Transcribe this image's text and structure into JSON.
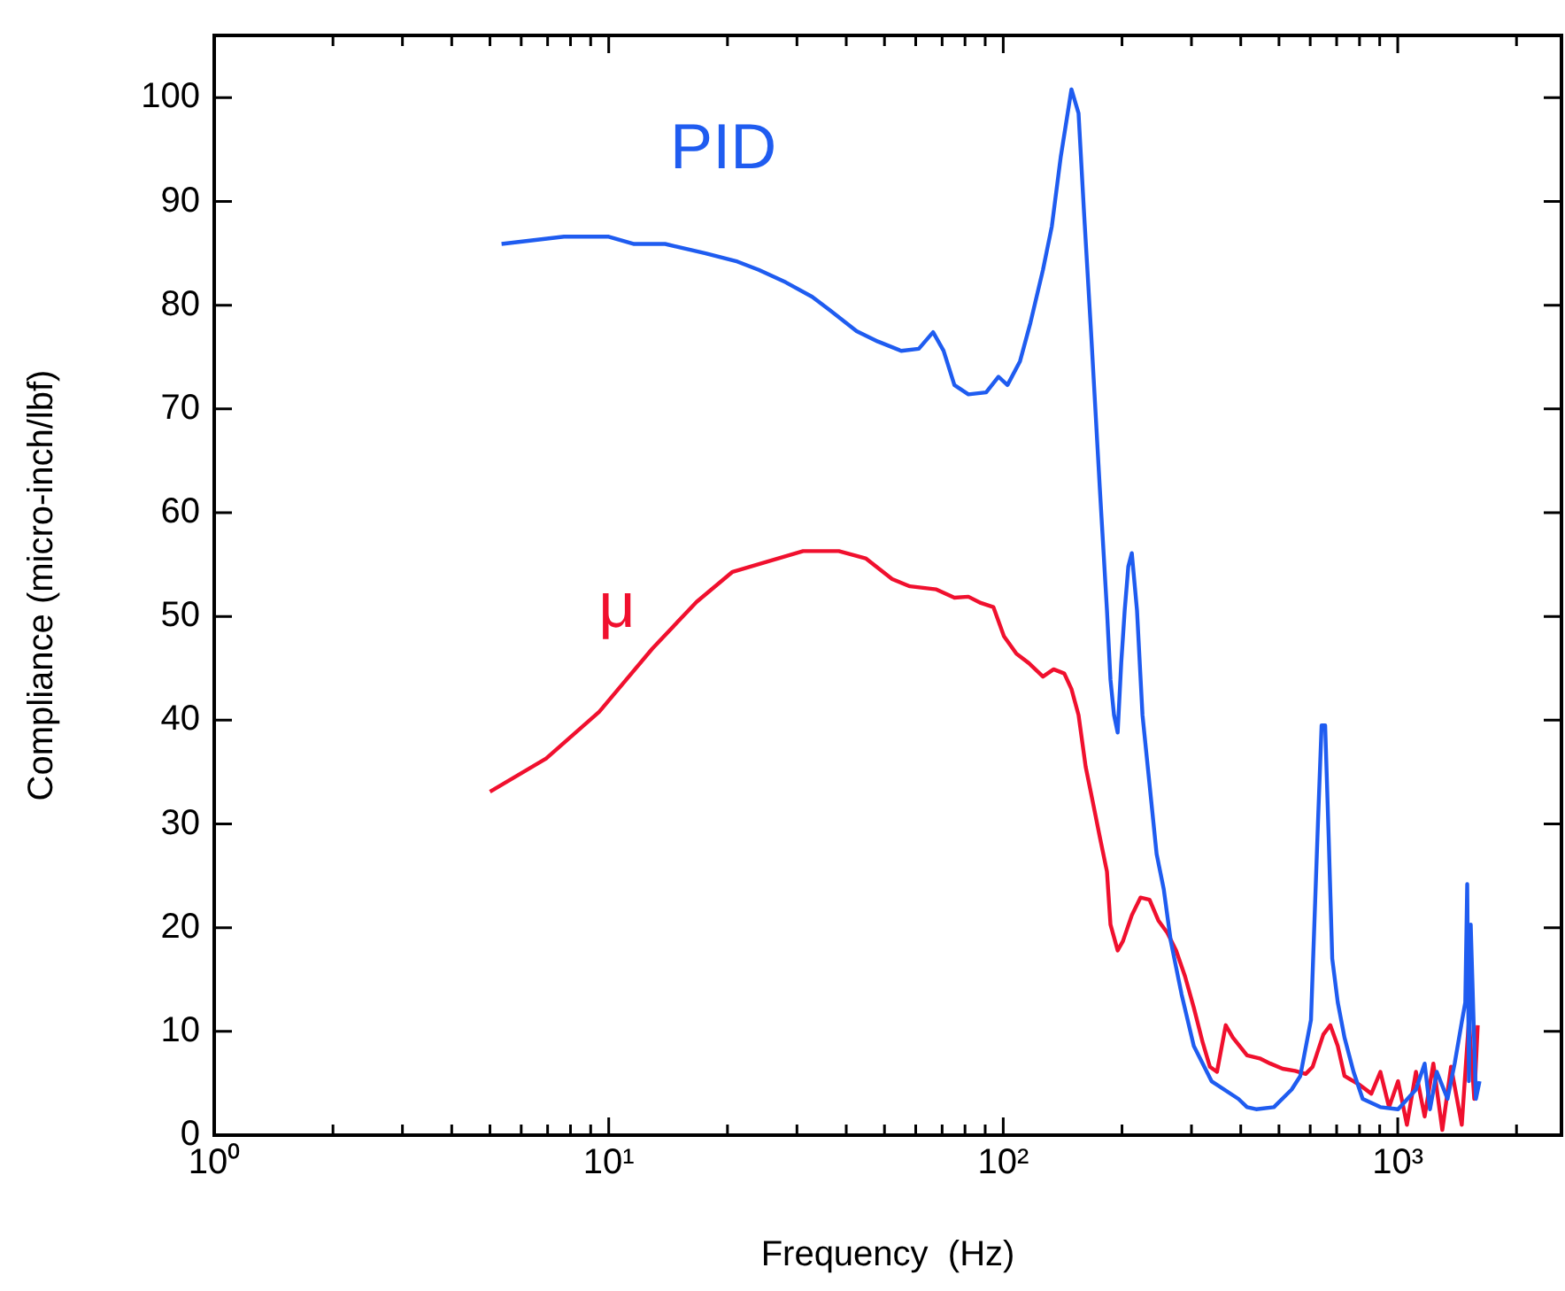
{
  "chart_data": {
    "type": "line",
    "xlabel": "Frequency  (Hz)",
    "ylabel": "Compliance (micro-inch/lbf)",
    "log": "x",
    "grid": false,
    "legend": false,
    "marker": "none",
    "line_style": "solid",
    "xlim": [
      1,
      2600
    ],
    "ylim": [
      0,
      106
    ],
    "xticks": [
      {
        "value": 1,
        "label": "10⁰"
      },
      {
        "value": 2,
        "label": null
      },
      {
        "value": 3,
        "label": null
      },
      {
        "value": 4,
        "label": null
      },
      {
        "value": 5,
        "label": null
      },
      {
        "value": 6,
        "label": null
      },
      {
        "value": 7,
        "label": null
      },
      {
        "value": 8,
        "label": null
      },
      {
        "value": 9,
        "label": null
      },
      {
        "value": 10,
        "label": "10¹"
      },
      {
        "value": 20,
        "label": null
      },
      {
        "value": 30,
        "label": null
      },
      {
        "value": 40,
        "label": null
      },
      {
        "value": 50,
        "label": null
      },
      {
        "value": 60,
        "label": null
      },
      {
        "value": 70,
        "label": null
      },
      {
        "value": 80,
        "label": null
      },
      {
        "value": 90,
        "label": null
      },
      {
        "value": 100,
        "label": "10²"
      },
      {
        "value": 200,
        "label": null
      },
      {
        "value": 300,
        "label": null
      },
      {
        "value": 400,
        "label": null
      },
      {
        "value": 500,
        "label": null
      },
      {
        "value": 600,
        "label": null
      },
      {
        "value": 700,
        "label": null
      },
      {
        "value": 800,
        "label": null
      },
      {
        "value": 900,
        "label": null
      },
      {
        "value": 1000,
        "label": "10³"
      },
      {
        "value": 2000,
        "label": null
      }
    ],
    "yticks": [
      0,
      10,
      20,
      30,
      40,
      50,
      60,
      70,
      80,
      90,
      100
    ],
    "series": [
      {
        "name": "PID",
        "color": "#1f5cf0",
        "x": [
          5.35,
          7.7,
          10,
          11.6,
          13.9,
          17.6,
          21.2,
          24.0,
          28.1,
          32.8,
          36.4,
          42.5,
          48.1,
          55.1,
          61.1,
          66.4,
          70.6,
          75.2,
          81.6,
          90.5,
          97.3,
          102.5,
          110.3,
          117.2,
          126.1,
          132.8,
          139.9,
          148.9,
          155.2,
          160.1,
          166.9,
          175.8,
          183.2,
          187.0,
          190.9,
          195.0,
          199.1,
          203.2,
          207.5,
          211.8,
          218.3,
          225.4,
          234.9,
          244.8,
          255.2,
          265.9,
          283.1,
          304.1,
          337.3,
          394.5,
          415.0,
          437.5,
          485.3,
          538.3,
          566.2,
          602.6,
          628.1,
          641.2,
          654.6,
          668.3,
          682.3,
          704.6,
          733,
          772.7,
          814.7,
          903.6,
          1002,
          1112,
          1170,
          1207,
          1256,
          1337,
          1394,
          1453,
          1483,
          1500,
          1515,
          1531,
          1578,
          1612
        ],
        "values": [
          85.9,
          86.6,
          86.6,
          85.9,
          85.9,
          85.0,
          84.2,
          83.4,
          82.2,
          80.8,
          79.5,
          77.5,
          76.5,
          75.6,
          75.8,
          77.4,
          75.6,
          72.3,
          71.4,
          71.6,
          73.1,
          72.3,
          74.6,
          78.3,
          83.4,
          87.6,
          94.3,
          100.8,
          98.5,
          89.2,
          77.5,
          62.2,
          50.6,
          43.9,
          40.5,
          38.8,
          45.5,
          50.6,
          54.8,
          56.1,
          50.6,
          40.5,
          33.8,
          27.1,
          23.7,
          18.7,
          13.6,
          8.6,
          5.2,
          3.5,
          2.7,
          2.5,
          2.7,
          4.4,
          5.7,
          11.1,
          30.4,
          39.5,
          39.5,
          28.7,
          17.0,
          12.8,
          9.4,
          6.1,
          3.5,
          2.7,
          2.5,
          4.4,
          6.9,
          2.5,
          6.1,
          3.5,
          6.9,
          10.9,
          12.8,
          24.2,
          5.2,
          20.3,
          3.5,
          5.2
        ]
      },
      {
        "name": "μ",
        "color": "#f0102e",
        "x": [
          5.0,
          6.94,
          9.46,
          12.9,
          16.7,
          20.6,
          25.3,
          31.1,
          38.3,
          44.8,
          52.3,
          58.0,
          67.7,
          75.2,
          81.6,
          87.7,
          94.4,
          100.4,
          108.0,
          116.1,
          126.1,
          134.2,
          142.8,
          148.9,
          155.2,
          161.8,
          168.7,
          175.8,
          183.2,
          187.0,
          195.0,
          201.1,
          211.8,
          222.8,
          234.9,
          247.2,
          260.6,
          274.3,
          289.0,
          304.1,
          320.5,
          334.0,
          348.2,
          366.4,
          382.1,
          415.0,
          446.7,
          475.3,
          510.9,
          549.1,
          584.3,
          608.7,
          647.6,
          674.5,
          704.6,
          733,
          796.5,
          857.1,
          903.6,
          950.6,
          1002,
          1055,
          1112,
          1170,
          1231,
          1297,
          1365,
          1453,
          1515,
          1563,
          1595
        ],
        "values": [
          33.1,
          36.3,
          40.8,
          46.9,
          51.4,
          54.3,
          55.3,
          56.3,
          56.3,
          55.6,
          53.6,
          52.9,
          52.6,
          51.8,
          51.9,
          51.3,
          50.9,
          48.1,
          46.4,
          45.5,
          44.2,
          44.9,
          44.5,
          43.0,
          40.5,
          35.5,
          32.1,
          28.7,
          25.4,
          20.3,
          17.8,
          18.7,
          21.2,
          22.9,
          22.7,
          20.7,
          19.5,
          17.8,
          15.3,
          12.3,
          8.9,
          6.6,
          6.1,
          10.6,
          9.4,
          7.7,
          7.4,
          6.9,
          6.4,
          6.2,
          5.9,
          6.6,
          9.7,
          10.6,
          8.6,
          5.7,
          4.9,
          4.0,
          6.1,
          2.7,
          5.2,
          1.0,
          6.1,
          1.8,
          6.9,
          0.5,
          6.6,
          1.0,
          11.1,
          3.5,
          10.6
        ]
      }
    ]
  }
}
